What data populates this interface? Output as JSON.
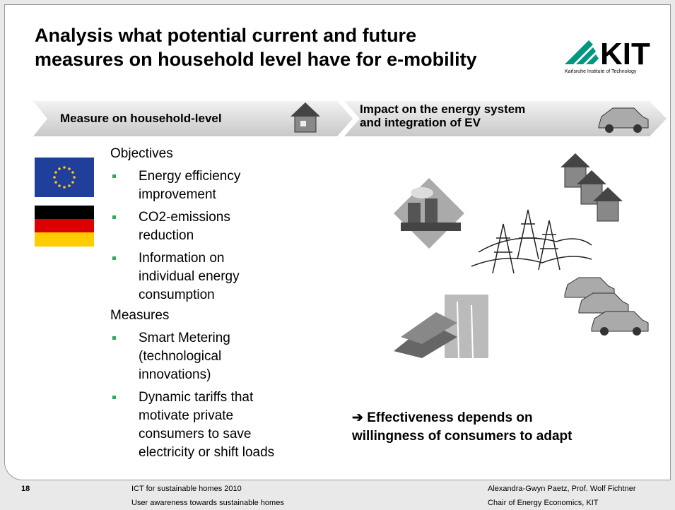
{
  "header": {
    "title_lines": [
      "Analysis what potential current and future",
      "measures on household level have for e-mobility"
    ],
    "logo": {
      "mark": "KIT",
      "caption": "Karlsruhe Institute of Technology"
    }
  },
  "banner": {
    "left": [
      "Measure on household-level"
    ],
    "right": [
      "Impact on the energy system",
      "and integration of EV"
    ]
  },
  "content": {
    "objectives": {
      "heading": "Objectives",
      "items": [
        [
          "Energy efficiency",
          "improvement"
        ],
        [
          "CO2-emissions",
          "reduction"
        ],
        [
          "Information on",
          "individual energy",
          "consumption"
        ]
      ]
    },
    "measures": {
      "heading": "Measures",
      "items": [
        [
          "Smart Metering",
          "(technological",
          "innovations)"
        ],
        [
          "Dynamic tariffs that",
          "motivate private",
          "consumers to save",
          "electricity or shift loads"
        ]
      ]
    },
    "conclusion": [
      "➔ Effectiveness depends on",
      "   willingness of consumers to adapt"
    ]
  },
  "footer": {
    "page": "18",
    "center": [
      "ICT for sustainable homes 2010",
      "User awareness towards sustainable homes"
    ],
    "right": [
      "Alexandra-Gwyn Paetz, Prof. Wolf Fichtner",
      "Chair of Energy Economics, KIT"
    ]
  }
}
